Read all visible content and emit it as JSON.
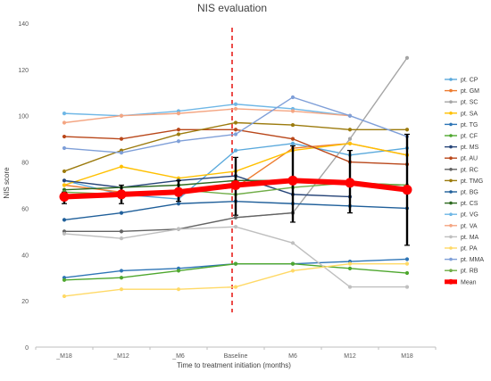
{
  "chart_data": {
    "type": "line",
    "title": "NIS evaluation",
    "xlabel": "Time to treatment initiation (months)",
    "ylabel": "NIS score",
    "x": [
      "_M18",
      "_M12",
      "_M6",
      "Baseline",
      "M6",
      "M12",
      "M18"
    ],
    "ylim": [
      0,
      140
    ],
    "yticks": [
      0,
      20,
      40,
      60,
      80,
      100,
      120,
      140
    ],
    "grid": false,
    "legend_position": "right",
    "baseline_marker": {
      "x": "Baseline",
      "color": "#e8211d",
      "style": "dashed"
    },
    "series": [
      {
        "name": "pt. CP",
        "color": "#5aa9dc",
        "values": [
          72,
          66,
          64,
          85,
          88,
          83,
          86
        ]
      },
      {
        "name": "pt. GM",
        "color": "#ed7d31",
        "values": [
          70,
          67,
          67,
          69,
          86,
          88,
          83
        ]
      },
      {
        "name": "pt. SC",
        "color": "#a5a5a5",
        "values": [
          null,
          null,
          null,
          56,
          58,
          90,
          125
        ]
      },
      {
        "name": "pt. SA",
        "color": "#ffc000",
        "values": [
          70,
          78,
          73,
          76,
          85,
          88,
          83
        ]
      },
      {
        "name": "pt. TG",
        "color": "#2e75b6",
        "values": [
          30,
          33,
          34,
          36,
          36,
          37,
          38
        ]
      },
      {
        "name": "pt. CF",
        "color": "#4ea72e",
        "values": [
          29,
          30,
          33,
          36,
          36,
          34,
          32
        ]
      },
      {
        "name": "pt. MS",
        "color": "#264478",
        "values": [
          72,
          69,
          72,
          74,
          66,
          65,
          null
        ]
      },
      {
        "name": "pt. AU",
        "color": "#b9471a",
        "values": [
          91,
          90,
          94,
          94,
          90,
          80,
          79
        ]
      },
      {
        "name": "pt. RC",
        "color": "#636363",
        "values": [
          50,
          50,
          51,
          56,
          58,
          null,
          null
        ]
      },
      {
        "name": "pt. TMG",
        "color": "#9c7b0e",
        "values": [
          76,
          85,
          92,
          97,
          96,
          94,
          94
        ]
      },
      {
        "name": "pt. BG",
        "color": "#1f5f9a",
        "values": [
          55,
          58,
          62,
          63,
          62,
          61,
          60
        ]
      },
      {
        "name": "pt. CS",
        "color": "#2d6a1f",
        "values": [
          68,
          69,
          70,
          72,
          72,
          71,
          70
        ]
      },
      {
        "name": "pt. VG",
        "color": "#6fb7e6",
        "values": [
          101,
          100,
          102,
          105,
          103,
          100,
          null
        ]
      },
      {
        "name": "pt. VA",
        "color": "#f4a582",
        "values": [
          97,
          100,
          101,
          103,
          102,
          100,
          null
        ]
      },
      {
        "name": "pt. MA",
        "color": "#bfbfbf",
        "values": [
          49,
          47,
          51,
          52,
          45,
          26,
          26
        ]
      },
      {
        "name": "pt. PA",
        "color": "#ffd966",
        "values": [
          22,
          25,
          25,
          26,
          33,
          36,
          36
        ]
      },
      {
        "name": "pt. MMA",
        "color": "#7f9fd8",
        "values": [
          86,
          84,
          89,
          92,
          108,
          100,
          91
        ]
      },
      {
        "name": "pt. RB",
        "color": "#70ad47",
        "values": [
          67,
          66,
          68,
          66,
          69,
          71,
          70
        ]
      }
    ],
    "mean": {
      "name": "Mean",
      "color": "#ff0000",
      "values": [
        65,
        66,
        67,
        70,
        72,
        71,
        68
      ],
      "error_low": [
        62,
        62,
        63,
        57,
        54,
        58,
        44
      ],
      "error_high": [
        67,
        70,
        72,
        82,
        87,
        85,
        92
      ]
    }
  }
}
